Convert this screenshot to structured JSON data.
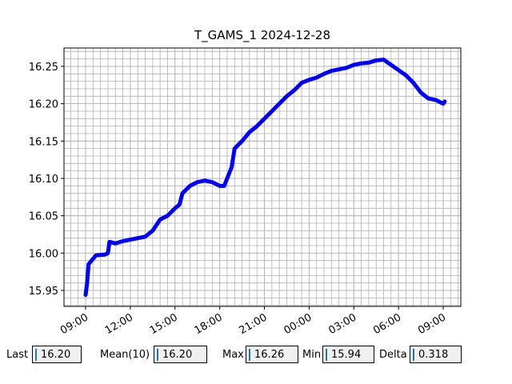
{
  "chart_data": {
    "type": "line",
    "title": "T_GAMS_1 2024-12-28",
    "x": [
      9.0,
      9.1,
      9.2,
      9.4,
      9.7,
      10.3,
      10.5,
      10.6,
      11.0,
      11.5,
      12.0,
      12.5,
      13.0,
      13.5,
      14.0,
      14.5,
      15.0,
      15.3,
      15.5,
      16.0,
      16.5,
      17.0,
      17.5,
      18.0,
      18.3,
      18.5,
      18.8,
      19.0,
      19.5,
      20.0,
      20.5,
      21.0,
      21.5,
      22.0,
      22.5,
      23.0,
      23.5,
      24.0,
      24.5,
      25.0,
      25.5,
      26.0,
      26.5,
      27.0,
      27.5,
      28.0,
      28.5,
      29.0,
      29.5,
      30.0,
      30.5,
      31.0,
      31.5,
      32.0,
      32.5,
      33.0,
      33.1
    ],
    "values": [
      15.944,
      15.96,
      15.985,
      15.99,
      15.997,
      15.998,
      16.0,
      16.015,
      16.013,
      16.016,
      16.018,
      16.02,
      16.022,
      16.03,
      16.045,
      16.05,
      16.06,
      16.065,
      16.08,
      16.09,
      16.095,
      16.097,
      16.095,
      16.09,
      16.09,
      16.1,
      16.115,
      16.14,
      16.15,
      16.162,
      16.17,
      16.18,
      16.19,
      16.2,
      16.21,
      16.218,
      16.228,
      16.232,
      16.235,
      16.24,
      16.244,
      16.246,
      16.248,
      16.252,
      16.254,
      16.255,
      16.258,
      16.259,
      16.252,
      16.245,
      16.238,
      16.228,
      16.215,
      16.207,
      16.205,
      16.2,
      16.203
    ],
    "color": "#0000ff",
    "xlim": [
      7.55,
      34.18
    ],
    "xticks": [
      {
        "value": 9,
        "label": "09:00"
      },
      {
        "value": 12,
        "label": "12:00"
      },
      {
        "value": 15,
        "label": "15:00"
      },
      {
        "value": 18,
        "label": "18:00"
      },
      {
        "value": 21,
        "label": "21:00"
      },
      {
        "value": 24,
        "label": "00:00"
      },
      {
        "value": 27,
        "label": "03:00"
      },
      {
        "value": 30,
        "label": "06:00"
      },
      {
        "value": 33,
        "label": "09:00"
      }
    ],
    "ylim": [
      15.9286,
      16.2746
    ],
    "yticks": [
      15.95,
      {
        "value": 16.0,
        "label": "16.00"
      },
      16.05,
      {
        "value": 16.1,
        "label": "16.10"
      },
      16.15,
      {
        "value": 16.2,
        "label": "16.20"
      },
      16.25
    ],
    "grid": true
  },
  "readouts": [
    {
      "label": "Last",
      "value": "16.20"
    },
    {
      "label": "Mean(10)",
      "value": "16.20"
    },
    {
      "label": "Max",
      "value": "16.26"
    },
    {
      "label": "Min",
      "value": "15.94"
    },
    {
      "label": "Delta",
      "value": "0.318"
    }
  ]
}
